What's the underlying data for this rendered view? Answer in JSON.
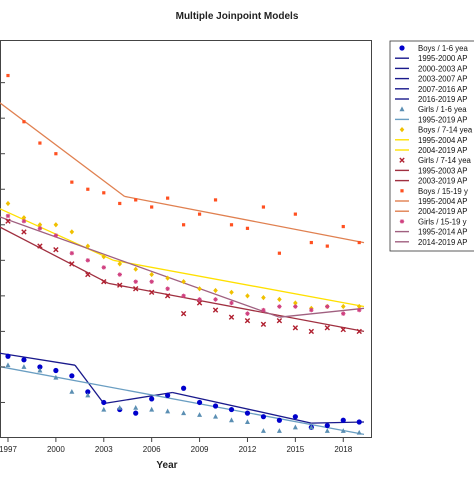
{
  "chart_data": {
    "type": "line",
    "title": "Multiple Joinpoint Models",
    "xlabel": "Year",
    "ylabel": "",
    "xlim": [
      1996.5,
      2019.8
    ],
    "ylim": [
      0,
      11.2
    ],
    "xticks": [
      1997,
      2000,
      2003,
      2006,
      2009,
      2012,
      2015,
      2018
    ],
    "grid": false,
    "legend_position": "right",
    "series": [
      {
        "name": "Boys / 1-6 yea",
        "kind": "observed",
        "marker": "circle",
        "color": "#0000cc",
        "x": [
          1996,
          1997,
          1998,
          1999,
          2000,
          2001,
          2002,
          2003,
          2004,
          2005,
          2006,
          2007,
          2008,
          2009,
          2010,
          2011,
          2012,
          2013,
          2014,
          2015,
          2016,
          2017,
          2018,
          2019
        ],
        "y": [
          2.4,
          2.3,
          2.2,
          2.0,
          1.9,
          1.75,
          1.3,
          1.0,
          0.8,
          0.7,
          1.1,
          1.2,
          1.4,
          1.0,
          0.9,
          0.8,
          0.7,
          0.6,
          0.5,
          0.6,
          0.3,
          0.35,
          0.5,
          0.45
        ]
      },
      {
        "name": "1995-2000 AP",
        "kind": "fit",
        "color": "#1a1a8c",
        "x": [
          1996,
          2001.2
        ],
        "y": [
          2.42,
          2.05
        ]
      },
      {
        "name": "2000-2003 AP",
        "kind": "fit",
        "color": "#1a1a8c",
        "x": [
          2001.2,
          2003
        ],
        "y": [
          2.05,
          0.97
        ]
      },
      {
        "name": "2003-2007 AP",
        "kind": "fit",
        "color": "#1a1a8c",
        "x": [
          2003,
          2007.3
        ],
        "y": [
          0.97,
          1.28
        ]
      },
      {
        "name": "2007-2016 AP",
        "kind": "fit",
        "color": "#1a1a8c",
        "x": [
          2007.3,
          2016
        ],
        "y": [
          1.28,
          0.42
        ]
      },
      {
        "name": "2016-2019 AP",
        "kind": "fit",
        "color": "#1a1a8c",
        "x": [
          2016,
          2019.3
        ],
        "y": [
          0.42,
          0.45
        ]
      },
      {
        "name": "Girls / 1-6 yea",
        "kind": "observed",
        "marker": "triangle",
        "color": "#5b8fb3",
        "x": [
          1996,
          1997,
          1998,
          1999,
          2000,
          2001,
          2002,
          2003,
          2004,
          2005,
          2006,
          2007,
          2008,
          2009,
          2010,
          2011,
          2012,
          2013,
          2014,
          2015,
          2016,
          2017,
          2018,
          2019
        ],
        "y": [
          2.0,
          2.05,
          2.0,
          1.9,
          1.7,
          1.3,
          1.2,
          0.8,
          0.85,
          0.85,
          0.8,
          0.75,
          0.7,
          0.65,
          0.6,
          0.5,
          0.45,
          0.2,
          0.2,
          0.3,
          0.3,
          0.2,
          0.2,
          0.15
        ]
      },
      {
        "name": "1995-2019 AP",
        "kind": "fit",
        "color": "#6a9ec2",
        "x": [
          1996,
          2019.3
        ],
        "y": [
          2.05,
          0.1
        ]
      },
      {
        "name": "Boys / 7-14 yea",
        "kind": "observed",
        "marker": "diamond",
        "color": "#f0c000",
        "x": [
          1996,
          1997,
          1998,
          1999,
          2000,
          2001,
          2002,
          2003,
          2004,
          2005,
          2006,
          2007,
          2008,
          2009,
          2010,
          2011,
          2012,
          2013,
          2014,
          2015,
          2016,
          2017,
          2018,
          2019
        ],
        "y": [
          6.3,
          6.6,
          6.2,
          6.0,
          6.0,
          5.8,
          5.4,
          5.1,
          4.9,
          4.75,
          4.6,
          4.5,
          4.4,
          4.2,
          4.15,
          4.1,
          4.0,
          3.95,
          3.9,
          3.8,
          3.65,
          3.7,
          3.7,
          3.7
        ]
      },
      {
        "name": "1995-2004 AP",
        "kind": "fit",
        "color": "#ffe000",
        "x": [
          1996,
          2003.6
        ],
        "y": [
          6.55,
          5.0
        ]
      },
      {
        "name": "2004-2019 AP",
        "kind": "fit",
        "color": "#ffe000",
        "x": [
          2003.6,
          2019.3
        ],
        "y": [
          5.0,
          3.7
        ]
      },
      {
        "name": "Girls / 7-14 yea",
        "kind": "observed",
        "marker": "x",
        "color": "#b02030",
        "x": [
          1996,
          1997,
          1998,
          1999,
          2000,
          2001,
          2002,
          2003,
          2004,
          2005,
          2006,
          2007,
          2008,
          2009,
          2010,
          2011,
          2012,
          2013,
          2014,
          2015,
          2016,
          2017,
          2018,
          2019
        ],
        "y": [
          6.0,
          6.1,
          5.8,
          5.4,
          5.3,
          4.9,
          4.6,
          4.4,
          4.3,
          4.2,
          4.1,
          4.0,
          3.5,
          3.8,
          3.6,
          3.4,
          3.3,
          3.2,
          3.3,
          3.1,
          3.0,
          3.1,
          3.05,
          3.0
        ]
      },
      {
        "name": "1995-2003 AP",
        "kind": "fit",
        "color": "#a03040",
        "x": [
          1996,
          2003.3
        ],
        "y": [
          6.05,
          4.35
        ]
      },
      {
        "name": "2003-2019 AP",
        "kind": "fit",
        "color": "#a03040",
        "x": [
          2003.3,
          2019.3
        ],
        "y": [
          4.35,
          3.0
        ]
      },
      {
        "name": "Boys / 15-19 y",
        "kind": "observed",
        "marker": "square",
        "color": "#ff5020",
        "x": [
          1996,
          1997,
          1998,
          1999,
          2000,
          2001,
          2002,
          2003,
          2004,
          2005,
          2006,
          2007,
          2008,
          2009,
          2010,
          2011,
          2012,
          2013,
          2014,
          2015,
          2016,
          2017,
          2018,
          2019
        ],
        "y": [
          9.8,
          10.2,
          8.9,
          8.3,
          8.0,
          7.2,
          7.0,
          6.9,
          6.6,
          6.7,
          6.5,
          6.75,
          6.0,
          6.3,
          6.7,
          6.0,
          5.9,
          6.5,
          5.2,
          6.3,
          5.5,
          5.4,
          5.95,
          5.5
        ]
      },
      {
        "name": "1995-2004 AP",
        "kind": "fit",
        "color": "#e08050",
        "x": [
          1996,
          2004.3
        ],
        "y": [
          9.6,
          6.8
        ]
      },
      {
        "name": "2004-2019 AP",
        "kind": "fit",
        "color": "#e08050",
        "x": [
          2004.3,
          2019.3
        ],
        "y": [
          6.8,
          5.5
        ]
      },
      {
        "name": "Girls / 15-19 y",
        "kind": "observed",
        "marker": "star",
        "color": "#d04080",
        "x": [
          1996,
          1997,
          1998,
          1999,
          2000,
          2001,
          2002,
          2003,
          2004,
          2005,
          2006,
          2007,
          2008,
          2009,
          2010,
          2011,
          2012,
          2013,
          2014,
          2015,
          2016,
          2017,
          2018,
          2019
        ],
        "y": [
          6.3,
          6.25,
          6.1,
          5.9,
          5.7,
          5.2,
          5.0,
          4.8,
          4.6,
          4.4,
          4.4,
          4.2,
          4.0,
          3.9,
          3.9,
          3.8,
          3.5,
          3.6,
          3.7,
          3.7,
          3.6,
          3.7,
          3.5,
          3.6
        ]
      },
      {
        "name": "1995-2014 AP",
        "kind": "fit",
        "color": "#a06080",
        "x": [
          1996,
          2014
        ],
        "y": [
          6.3,
          3.4
        ]
      },
      {
        "name": "2014-2019 AP",
        "kind": "fit",
        "color": "#a06080",
        "x": [
          2014,
          2019.3
        ],
        "y": [
          3.4,
          3.65
        ]
      }
    ]
  }
}
